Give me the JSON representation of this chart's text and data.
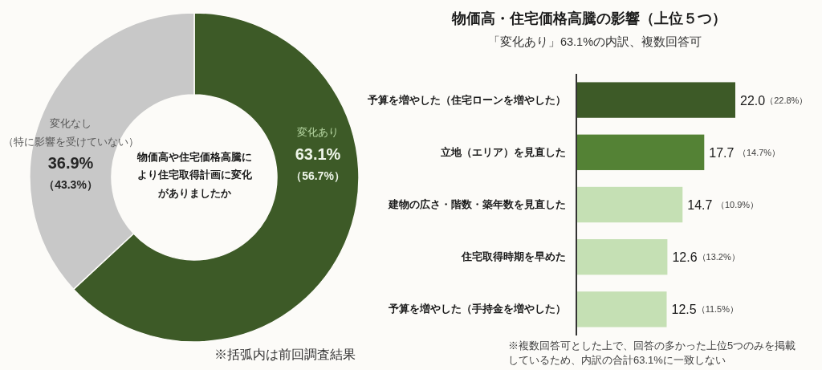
{
  "chart_data": [
    {
      "type": "donut",
      "title": "物価高や住宅価格高騰により住宅取得計画に変化がありましたか",
      "categories": [
        "変化あり",
        "変化なし（特に影響を受けていない）"
      ],
      "values": [
        63.1,
        36.9
      ],
      "colors": [
        "#3d5a27",
        "#c8c8c8"
      ],
      "value_labels": [
        "63.1%（56.7%）",
        "36.9%（43.3%）"
      ],
      "annotations": [
        "※括弧内は前回調査結果"
      ]
    },
    {
      "type": "bar",
      "orientation": "horizontal",
      "title": "物価高・住宅価格高騰の影響（上位５つ）",
      "subtitle": "「変化あり」63.1%の内訳、複数回答可",
      "categories": [
        "予算を増やした（住宅ローンを増やした）",
        "立地（エリア）を見直した",
        "建物の広さ・階数・築年数を見直した",
        "住宅取得時期を早めた",
        "予算を増やした（手持金を増やした）"
      ],
      "values": [
        22.0,
        17.7,
        14.7,
        12.6,
        12.5
      ],
      "colors": [
        "#3d5a27",
        "#548235",
        "#c5e0b4",
        "#c5e0b4",
        "#c5e0b4"
      ],
      "value_labels": [
        "22.0（22.8%）",
        "17.7 （14.7%）",
        "14.7 （10.9%）",
        "12.6（13.2%）",
        "12.5（11.5%）"
      ],
      "annotations": [
        "※複数回答可とした上で、回答の多かった上位5つのみを掲載しているため、内訳の合計63.1%に一致しない"
      ]
    }
  ]
}
